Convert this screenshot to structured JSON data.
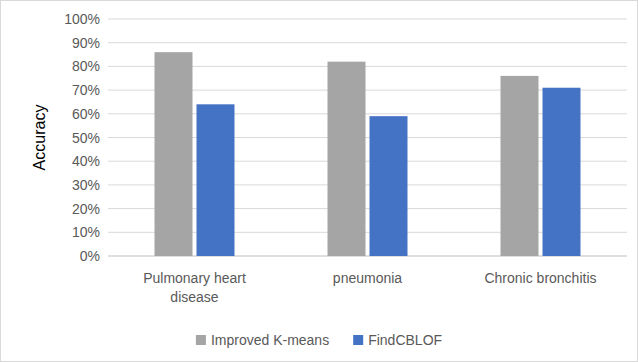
{
  "chart_data": {
    "type": "bar",
    "y_label": "Accuracy",
    "categories": [
      "Pulmonary heart disease",
      "pneumonia",
      "Chronic bronchitis"
    ],
    "series": [
      {
        "name": "Improved K-means",
        "color": "#a5a5a5",
        "values": [
          86,
          82,
          76
        ]
      },
      {
        "name": "FindCBLOF",
        "color": "#4472c4",
        "values": [
          64,
          59,
          71
        ]
      }
    ],
    "ylim": [
      0,
      100
    ],
    "yticks": [
      {
        "value": 0,
        "label": "0%"
      },
      {
        "value": 10,
        "label": "10%"
      },
      {
        "value": 20,
        "label": "20%"
      },
      {
        "value": 30,
        "label": "30%"
      },
      {
        "value": 40,
        "label": "40%"
      },
      {
        "value": 50,
        "label": "50%"
      },
      {
        "value": 60,
        "label": "60%"
      },
      {
        "value": 70,
        "label": "70%"
      },
      {
        "value": 80,
        "label": "80%"
      },
      {
        "value": 90,
        "label": "90%"
      },
      {
        "value": 100,
        "label": "100%"
      }
    ],
    "grid": true,
    "legend": "bottom"
  }
}
